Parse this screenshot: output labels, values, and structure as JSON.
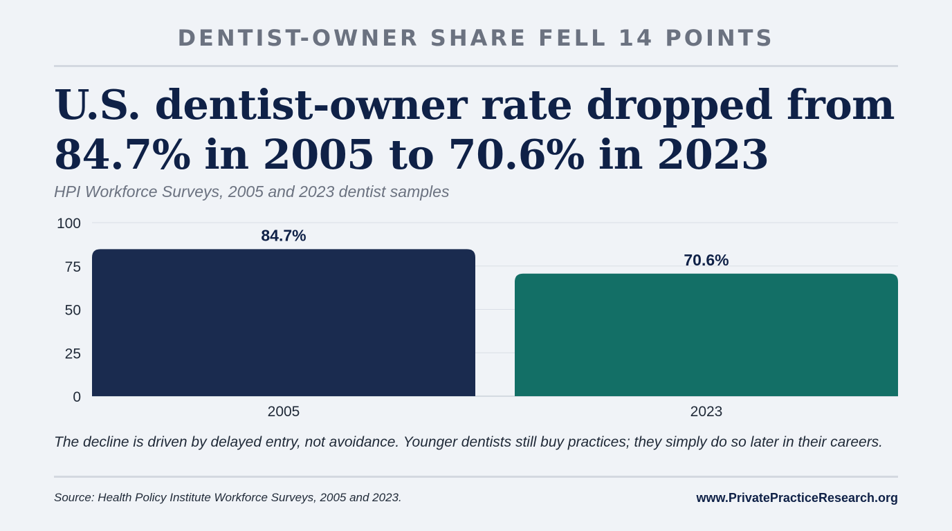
{
  "header": {
    "kicker": "DENTIST-OWNER SHARE FELL 14 POINTS",
    "headline": "U.S. dentist-owner rate dropped from 84.7% in 2005 to 70.6% in 2023",
    "subtitle": "HPI Workforce Surveys, 2005 and 2023 dentist samples"
  },
  "chart_data": {
    "type": "bar",
    "categories": [
      "2005",
      "2023"
    ],
    "values": [
      84.7,
      70.6
    ],
    "value_labels": [
      "84.7%",
      "70.6%"
    ],
    "colors": [
      "#1a2b4f",
      "#136f66"
    ],
    "ylim": [
      0,
      100
    ],
    "yticks": [
      0,
      25,
      50,
      75,
      100
    ],
    "grid": true
  },
  "footer": {
    "note": "The decline is driven by delayed entry, not avoidance. Younger dentists still buy practices; they simply do so later in their careers.",
    "source": "Source: Health Policy Institute Workforce Surveys, 2005 and 2023.",
    "site": "www.PrivatePracticeResearch.org"
  }
}
